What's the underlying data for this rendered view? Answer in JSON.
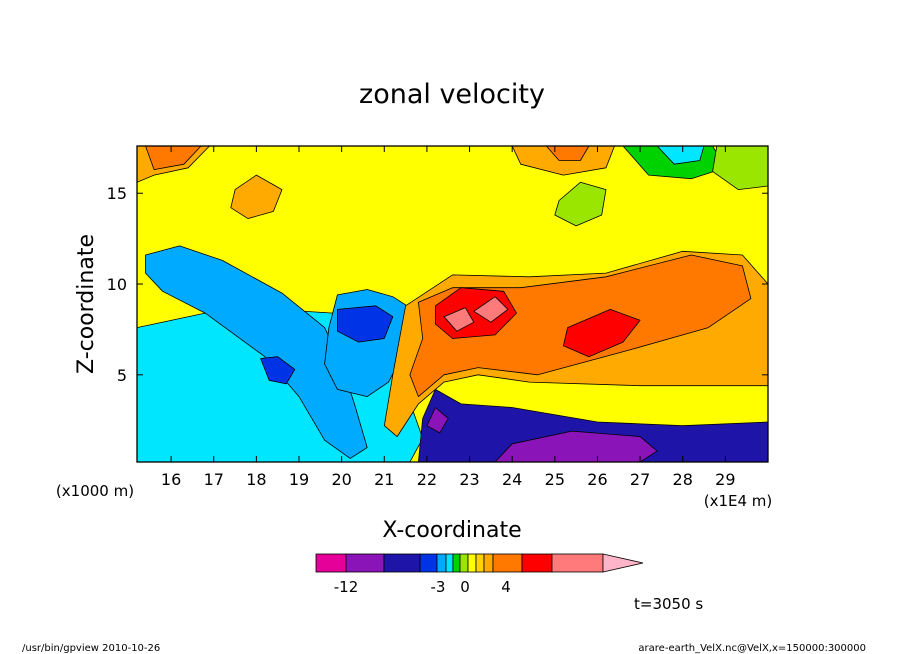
{
  "chart_data": {
    "type": "heatmap",
    "title": "zonal velocity",
    "xlabel": "X-coordinate",
    "ylabel": "Z-coordinate",
    "x_unit_label": "(x1E4 m)",
    "y_unit_label": "(x1000 m)",
    "xlim": [
      15.2,
      30.0
    ],
    "ylim": [
      0.2,
      17.6
    ],
    "x_ticks": [
      "16",
      "17",
      "18",
      "19",
      "20",
      "21",
      "22",
      "23",
      "24",
      "25",
      "26",
      "27",
      "28",
      "29"
    ],
    "y_ticks": [
      "5",
      "10",
      "15"
    ],
    "time_label": "t=3050 s",
    "colorbar": {
      "colors": [
        "#e6009a",
        "#8a14b8",
        "#1e14a8",
        "#0032e6",
        "#00aaff",
        "#00e6ff",
        "#00d200",
        "#9be600",
        "#ffff00",
        "#ffd200",
        "#ffaa00",
        "#ff7800",
        "#ff0000",
        "#ff7a7a",
        "#ffb4c8"
      ],
      "tick_labels": [
        "-12",
        "-3",
        "0",
        "4"
      ],
      "tick_values": [
        -12,
        -3,
        0,
        4
      ]
    },
    "regions": [
      {
        "level": 5,
        "points": [
          [
            15.2,
            7.6
          ],
          [
            16.8,
            8.4
          ],
          [
            18.4,
            8.6
          ],
          [
            19.8,
            8.4
          ],
          [
            20.9,
            8.0
          ],
          [
            21.2,
            5.5
          ],
          [
            21.6,
            3.5
          ],
          [
            21.9,
            1.5
          ],
          [
            21.6,
            0.2
          ],
          [
            15.2,
            0.2
          ]
        ]
      },
      {
        "level": 4,
        "points": [
          [
            15.4,
            11.6
          ],
          [
            16.2,
            12.1
          ],
          [
            17.2,
            11.3
          ],
          [
            18.6,
            9.5
          ],
          [
            19.6,
            7.6
          ],
          [
            20.0,
            5.6
          ],
          [
            20.3,
            3.4
          ],
          [
            20.6,
            1.0
          ],
          [
            20.2,
            0.4
          ],
          [
            19.6,
            1.4
          ],
          [
            19.0,
            3.8
          ],
          [
            18.2,
            6.0
          ],
          [
            16.8,
            8.4
          ],
          [
            15.8,
            9.6
          ],
          [
            15.4,
            10.6
          ]
        ]
      },
      {
        "level": 3,
        "points": [
          [
            18.1,
            5.9
          ],
          [
            18.5,
            6.0
          ],
          [
            18.9,
            5.3
          ],
          [
            18.7,
            4.5
          ],
          [
            18.3,
            4.7
          ]
        ]
      },
      {
        "level": 4,
        "points": [
          [
            19.9,
            9.4
          ],
          [
            20.6,
            9.7
          ],
          [
            21.2,
            9.3
          ],
          [
            21.8,
            8.4
          ],
          [
            21.5,
            6.4
          ],
          [
            21.1,
            4.6
          ],
          [
            20.6,
            3.8
          ],
          [
            19.9,
            4.2
          ],
          [
            19.6,
            5.6
          ],
          [
            19.7,
            7.6
          ]
        ]
      },
      {
        "level": 3,
        "points": [
          [
            19.9,
            8.6
          ],
          [
            20.8,
            8.8
          ],
          [
            21.2,
            8.2
          ],
          [
            21.0,
            7.0
          ],
          [
            20.4,
            6.8
          ],
          [
            19.9,
            7.4
          ]
        ]
      },
      {
        "level": 10,
        "points": [
          [
            21.5,
            8.8
          ],
          [
            22.6,
            10.5
          ],
          [
            24.4,
            10.4
          ],
          [
            26.2,
            10.6
          ],
          [
            28.0,
            11.8
          ],
          [
            29.4,
            11.6
          ],
          [
            30.0,
            10.0
          ],
          [
            30.0,
            4.4
          ],
          [
            27.0,
            4.4
          ],
          [
            24.4,
            4.6
          ],
          [
            23.2,
            5.0
          ],
          [
            22.4,
            4.6
          ],
          [
            21.8,
            3.4
          ],
          [
            21.3,
            1.6
          ],
          [
            21.0,
            2.2
          ],
          [
            21.2,
            5.0
          ]
        ]
      },
      {
        "level": 11,
        "points": [
          [
            21.8,
            9.0
          ],
          [
            22.6,
            9.8
          ],
          [
            24.2,
            9.8
          ],
          [
            26.2,
            10.4
          ],
          [
            28.2,
            11.6
          ],
          [
            29.4,
            11.0
          ],
          [
            29.6,
            9.2
          ],
          [
            28.6,
            7.6
          ],
          [
            26.8,
            6.4
          ],
          [
            24.6,
            5.0
          ],
          [
            23.2,
            5.4
          ],
          [
            22.4,
            5.0
          ],
          [
            21.8,
            3.8
          ],
          [
            21.6,
            5.0
          ],
          [
            21.9,
            7.0
          ]
        ]
      },
      {
        "level": 12,
        "points": [
          [
            22.2,
            8.8
          ],
          [
            22.8,
            9.8
          ],
          [
            23.8,
            9.6
          ],
          [
            24.1,
            8.4
          ],
          [
            23.6,
            7.2
          ],
          [
            22.6,
            7.0
          ],
          [
            22.2,
            7.8
          ]
        ]
      },
      {
        "level": 13,
        "points": [
          [
            22.4,
            8.2
          ],
          [
            22.9,
            8.7
          ],
          [
            23.1,
            7.9
          ],
          [
            22.7,
            7.4
          ]
        ]
      },
      {
        "level": 13,
        "points": [
          [
            23.1,
            8.5
          ],
          [
            23.6,
            9.3
          ],
          [
            23.9,
            8.6
          ],
          [
            23.5,
            7.9
          ]
        ]
      },
      {
        "level": 12,
        "points": [
          [
            25.3,
            7.6
          ],
          [
            26.3,
            8.6
          ],
          [
            27.0,
            8.0
          ],
          [
            26.6,
            6.8
          ],
          [
            25.8,
            6.0
          ],
          [
            25.2,
            6.6
          ]
        ]
      },
      {
        "level": 2,
        "points": [
          [
            21.8,
            0.2
          ],
          [
            21.9,
            2.6
          ],
          [
            22.2,
            4.2
          ],
          [
            22.8,
            3.4
          ],
          [
            24.0,
            3.2
          ],
          [
            26.0,
            2.4
          ],
          [
            28.0,
            2.2
          ],
          [
            30.0,
            2.4
          ],
          [
            30.0,
            0.2
          ]
        ]
      },
      {
        "level": 1,
        "points": [
          [
            23.6,
            0.2
          ],
          [
            24.0,
            1.2
          ],
          [
            25.4,
            1.9
          ],
          [
            27.0,
            1.6
          ],
          [
            27.4,
            0.8
          ],
          [
            27.0,
            0.2
          ]
        ]
      },
      {
        "level": 1,
        "points": [
          [
            22.0,
            2.2
          ],
          [
            22.2,
            3.2
          ],
          [
            22.5,
            2.6
          ],
          [
            22.3,
            1.8
          ]
        ]
      },
      {
        "level": 10,
        "points": [
          [
            15.2,
            17.6
          ],
          [
            16.9,
            17.6
          ],
          [
            16.4,
            16.4
          ],
          [
            15.6,
            16.0
          ],
          [
            15.2,
            15.6
          ]
        ]
      },
      {
        "level": 11,
        "points": [
          [
            15.4,
            17.6
          ],
          [
            16.7,
            17.6
          ],
          [
            16.3,
            16.6
          ],
          [
            15.6,
            16.3
          ]
        ]
      },
      {
        "level": 10,
        "points": [
          [
            17.5,
            15.2
          ],
          [
            18.0,
            16.0
          ],
          [
            18.6,
            15.2
          ],
          [
            18.4,
            14.0
          ],
          [
            17.8,
            13.6
          ],
          [
            17.4,
            14.2
          ]
        ]
      },
      {
        "level": 6,
        "points": [
          [
            26.6,
            17.6
          ],
          [
            28.7,
            17.6
          ],
          [
            29.0,
            16.4
          ],
          [
            28.2,
            15.8
          ],
          [
            27.2,
            16.0
          ]
        ]
      },
      {
        "level": 5,
        "points": [
          [
            27.4,
            17.6
          ],
          [
            28.5,
            17.6
          ],
          [
            28.4,
            16.8
          ],
          [
            27.8,
            16.6
          ]
        ]
      },
      {
        "level": 7,
        "points": [
          [
            28.8,
            17.6
          ],
          [
            30.0,
            17.6
          ],
          [
            30.0,
            15.4
          ],
          [
            29.3,
            15.2
          ],
          [
            28.7,
            16.2
          ]
        ]
      },
      {
        "level": 10,
        "points": [
          [
            24.0,
            17.6
          ],
          [
            26.4,
            17.6
          ],
          [
            26.2,
            16.4
          ],
          [
            25.2,
            16.0
          ],
          [
            24.2,
            16.6
          ]
        ]
      },
      {
        "level": 11,
        "points": [
          [
            24.8,
            17.6
          ],
          [
            25.8,
            17.6
          ],
          [
            25.6,
            16.8
          ],
          [
            25.1,
            16.8
          ]
        ]
      },
      {
        "level": 7,
        "points": [
          [
            25.1,
            14.6
          ],
          [
            25.6,
            15.6
          ],
          [
            26.2,
            15.2
          ],
          [
            26.1,
            13.8
          ],
          [
            25.5,
            13.2
          ],
          [
            25.0,
            13.8
          ]
        ]
      }
    ]
  },
  "footer": {
    "left": "/usr/bin/gpview   2010-10-26",
    "right": "arare-earth_VelX.nc@VelX,x=150000:300000"
  }
}
